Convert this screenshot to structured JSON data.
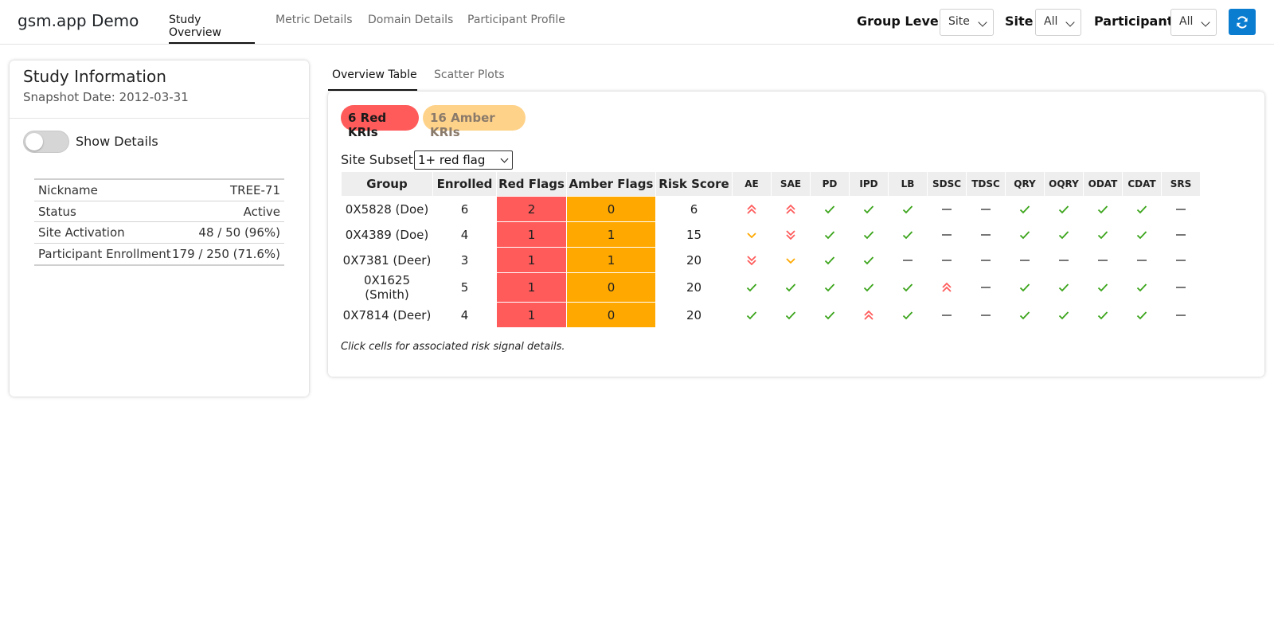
{
  "header": {
    "brand": "gsm.app Demo",
    "tabs": [
      "Study Overview",
      "Metric Details",
      "Domain Details",
      "Participant Profile"
    ],
    "active_tab": "Study Overview",
    "filters": [
      {
        "label": "Group Level",
        "value": "Site"
      },
      {
        "label": "Site",
        "value": "All"
      },
      {
        "label": "Participant",
        "value": "All"
      }
    ],
    "refresh_icon": "refresh-icon",
    "accent_color": "#0b7dd1"
  },
  "study_info": {
    "title": "Study Information",
    "snapshot_date": "Snapshot Date: 2012-03-31",
    "toggle_label": "Show Details",
    "rows": [
      {
        "key": "Nickname",
        "value": "TREE-71"
      },
      {
        "key": "Status",
        "value": "Active"
      },
      {
        "key": "Site Activation",
        "value": "48 / 50 (96%)"
      },
      {
        "key": "Participant Enrollment",
        "value": "179 / 250 (71.6%)"
      }
    ]
  },
  "overview": {
    "subtabs": [
      "Overview Table",
      "Scatter Plots"
    ],
    "red_kri_label": "6 Red KRIs",
    "amber_kri_label": "16 Amber KRIs",
    "subset_label": "Site Subset:",
    "subset_value": "1+ red flag",
    "columns": [
      "Group",
      "Enrolled",
      "Red Flags",
      "Amber Flags",
      "Risk Score"
    ],
    "metric_columns": [
      "AE",
      "SAE",
      "PD",
      "IPD",
      "LB",
      "SDSC",
      "TDSC",
      "QRY",
      "OQRY",
      "ODAT",
      "CDAT",
      "SRS"
    ],
    "rows": [
      {
        "group": "0X5828 (Doe)",
        "enrolled": "6",
        "red": "2",
        "amber": "0",
        "score": "6",
        "metrics": [
          "red-up",
          "red-up",
          "check",
          "check",
          "check",
          "dash",
          "dash",
          "check",
          "check",
          "check",
          "check",
          "dash"
        ]
      },
      {
        "group": "0X4389 (Doe)",
        "enrolled": "4",
        "red": "1",
        "amber": "1",
        "score": "15",
        "metrics": [
          "amber-down",
          "red-down",
          "check",
          "check",
          "check",
          "dash",
          "dash",
          "check",
          "check",
          "check",
          "check",
          "dash"
        ]
      },
      {
        "group": "0X7381 (Deer)",
        "enrolled": "3",
        "red": "1",
        "amber": "1",
        "score": "20",
        "metrics": [
          "red-down",
          "amber-down",
          "check",
          "check",
          "dash",
          "dash",
          "dash",
          "dash",
          "dash",
          "dash",
          "dash",
          "dash"
        ]
      },
      {
        "group": "0X1625 (Smith)",
        "enrolled": "5",
        "red": "1",
        "amber": "0",
        "score": "20",
        "metrics": [
          "check",
          "check",
          "check",
          "check",
          "check",
          "red-up",
          "dash",
          "check",
          "check",
          "check",
          "check",
          "dash"
        ]
      },
      {
        "group": "0X7814 (Deer)",
        "enrolled": "4",
        "red": "1",
        "amber": "0",
        "score": "20",
        "metrics": [
          "check",
          "check",
          "check",
          "red-up",
          "check",
          "dash",
          "dash",
          "check",
          "check",
          "check",
          "check",
          "dash"
        ]
      }
    ],
    "note": "Click cells for associated risk signal details.",
    "colors": {
      "red": "#ff5b5b",
      "amber": "#ffa800",
      "check": "#3aa41a",
      "dash": "#555555"
    }
  }
}
